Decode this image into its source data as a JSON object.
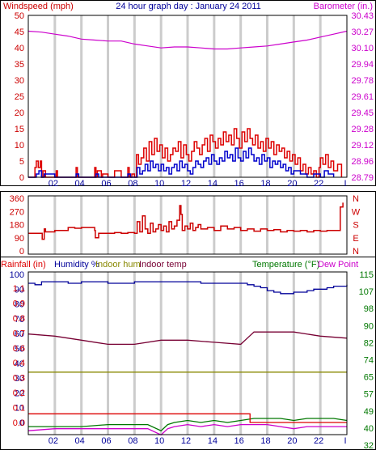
{
  "title": "24 hour graph day : January 24 2011",
  "colors": {
    "wind": "#dd0000",
    "gust": "#0000cc",
    "barometer": "#cc00cc",
    "direction": "#cc0000",
    "humidity": "#000099",
    "indoor_hum": "#888800",
    "indoor_temp": "#770033",
    "temperature": "#007700",
    "dew_point": "#cc00cc",
    "rain": "#dd0000",
    "grid": "#cccccc",
    "frame": "#000000"
  },
  "hour_ticks": [
    "02",
    "04",
    "06",
    "08",
    "10",
    "12",
    "14",
    "16",
    "18",
    "20",
    "22",
    "I"
  ],
  "chart_data": [
    {
      "type": "line",
      "name": "wind-barometer",
      "left_label": "Windspeed (mph)",
      "right_label": "Barometer (in.)",
      "x_range": [
        0,
        24
      ],
      "left_ticks": [
        "50",
        "45",
        "40",
        "35",
        "30",
        "25",
        "20",
        "15",
        "10",
        "5",
        "0"
      ],
      "left_range": [
        0,
        50
      ],
      "right_ticks": [
        "30.43",
        "30.27",
        "30.10",
        "29.94",
        "29.78",
        "29.61",
        "29.45",
        "29.28",
        "29.12",
        "28.96",
        "28.79"
      ],
      "right_range": [
        28.79,
        30.43
      ],
      "series": [
        {
          "key": "barometer",
          "axis": "right",
          "x": [
            0,
            1,
            2,
            3,
            4,
            5,
            6,
            7,
            8,
            9,
            10,
            11,
            12,
            13,
            14,
            15,
            16,
            17,
            18,
            19,
            20,
            21,
            22,
            23,
            24
          ],
          "values": [
            30.27,
            30.26,
            30.24,
            30.22,
            30.19,
            30.18,
            30.17,
            30.17,
            30.14,
            30.12,
            30.1,
            30.11,
            30.11,
            30.1,
            30.09,
            30.09,
            30.1,
            30.11,
            30.12,
            30.14,
            30.16,
            30.18,
            30.21,
            30.24,
            30.27
          ]
        },
        {
          "key": "wind",
          "axis": "left",
          "step": true,
          "x": [
            0,
            0.5,
            0.6,
            0.75,
            0.9,
            1.0,
            1.1,
            1.3,
            2,
            2.1,
            2.2,
            3,
            3.5,
            3.6,
            3.7,
            4.5,
            5.0,
            5.1,
            5.2,
            5.5,
            5.6,
            6.0,
            6.1,
            6.5,
            7.0,
            7.5,
            7.6,
            7.8,
            8.0,
            8.15,
            8.3,
            8.5,
            8.7,
            8.9,
            9.1,
            9.3,
            9.5,
            9.7,
            9.9,
            10.1,
            10.3,
            10.5,
            10.7,
            10.9,
            11.1,
            11.3,
            11.5,
            11.7,
            11.9,
            12.1,
            12.3,
            12.5,
            12.7,
            12.9,
            13.1,
            13.3,
            13.5,
            13.7,
            13.9,
            14.1,
            14.3,
            14.5,
            14.7,
            14.9,
            15.1,
            15.3,
            15.5,
            15.7,
            15.9,
            16.1,
            16.3,
            16.5,
            16.7,
            16.9,
            17.1,
            17.3,
            17.5,
            17.7,
            17.9,
            18.1,
            18.3,
            18.5,
            18.7,
            18.9,
            19.1,
            19.3,
            19.5,
            19.7,
            19.9,
            20.1,
            20.3,
            20.5,
            20.7,
            20.9,
            21.1,
            21.3,
            21.5,
            21.7,
            21.9,
            22.0,
            22.2,
            22.4,
            22.6,
            22.8,
            23.0,
            23.3,
            23.6
          ],
          "values": [
            0,
            3,
            5,
            3,
            5,
            0,
            2,
            0,
            0,
            2,
            0,
            0,
            0,
            3,
            0,
            0,
            3,
            0,
            2,
            0,
            1,
            0,
            0,
            2,
            0,
            3,
            0,
            1,
            0,
            7,
            4,
            6,
            9,
            5,
            11,
            7,
            12,
            8,
            10,
            6,
            9,
            5,
            7,
            9,
            8,
            11,
            6,
            10,
            7,
            5,
            8,
            11,
            9,
            7,
            10,
            12,
            8,
            13,
            11,
            9,
            12,
            10,
            14,
            11,
            13,
            10,
            15,
            12,
            9,
            14,
            11,
            15,
            12,
            10,
            13,
            9,
            11,
            8,
            12,
            9,
            11,
            7,
            10,
            8,
            9,
            6,
            8,
            5,
            7,
            4,
            6,
            2,
            4,
            1,
            3,
            1,
            2,
            0,
            3,
            6,
            4,
            7,
            3,
            5,
            2,
            4,
            0
          ]
        },
        {
          "key": "gust",
          "axis": "left",
          "step": true,
          "x": [
            0,
            0.6,
            0.8,
            1.0,
            1.2,
            2,
            3,
            3.6,
            3.8,
            4.5,
            5.1,
            5.3,
            6,
            7,
            7.5,
            7.7,
            8.0,
            8.2,
            8.4,
            8.6,
            8.8,
            9.0,
            9.2,
            9.4,
            9.6,
            9.8,
            10.0,
            10.2,
            10.4,
            10.6,
            10.8,
            11.0,
            11.2,
            11.4,
            11.6,
            11.8,
            12.0,
            12.2,
            12.4,
            12.6,
            12.8,
            13.0,
            13.2,
            13.4,
            13.6,
            13.8,
            14.0,
            14.2,
            14.4,
            14.6,
            14.8,
            15.0,
            15.2,
            15.4,
            15.6,
            15.8,
            16.0,
            16.2,
            16.4,
            16.6,
            16.8,
            17.0,
            17.2,
            17.4,
            17.6,
            17.8,
            18.0,
            18.2,
            18.4,
            18.6,
            18.8,
            19.0,
            19.2,
            19.4,
            19.6,
            19.8,
            20.0,
            20.5,
            21.0,
            21.5,
            22.0,
            22.3,
            22.6,
            23.0
          ],
          "values": [
            0,
            1,
            2,
            0,
            1,
            0,
            0,
            1,
            0,
            0,
            1,
            0,
            0,
            0,
            1,
            0,
            0,
            3,
            1,
            2,
            4,
            2,
            5,
            3,
            4,
            2,
            4,
            2,
            3,
            1,
            3,
            4,
            2,
            5,
            3,
            4,
            2,
            1,
            3,
            5,
            4,
            3,
            5,
            6,
            4,
            7,
            5,
            4,
            6,
            5,
            8,
            6,
            7,
            5,
            9,
            6,
            5,
            8,
            6,
            9,
            7,
            5,
            6,
            4,
            7,
            5,
            6,
            3,
            5,
            4,
            5,
            3,
            4,
            2,
            3,
            1,
            2,
            1,
            0,
            1,
            0,
            2,
            1,
            0
          ]
        }
      ]
    },
    {
      "type": "line",
      "name": "wind-direction",
      "x_range": [
        0,
        24
      ],
      "left_ticks": [
        "360",
        "270",
        "180",
        "90",
        "0"
      ],
      "left_range": [
        0,
        360
      ],
      "right_ticks": [
        "N",
        "W",
        "S",
        "E",
        "N"
      ],
      "series": [
        {
          "key": "direction",
          "axis": "left",
          "step": true,
          "x": [
            0,
            1.0,
            1.05,
            1.2,
            1.3,
            2.0,
            3.0,
            3.5,
            4.0,
            5.0,
            5.05,
            5.3,
            6.0,
            6.5,
            7.0,
            7.5,
            8.0,
            8.2,
            8.4,
            8.6,
            8.8,
            9.0,
            9.2,
            9.4,
            9.6,
            9.8,
            10.0,
            10.2,
            10.4,
            10.6,
            10.8,
            11.0,
            11.2,
            11.4,
            11.5,
            11.6,
            11.8,
            12.0,
            12.2,
            12.4,
            12.6,
            12.8,
            13.0,
            13.5,
            14.0,
            14.5,
            15.0,
            15.5,
            16.0,
            16.5,
            17.0,
            17.5,
            18.0,
            18.5,
            19.0,
            19.5,
            20.0,
            20.5,
            21.0,
            21.5,
            22.0,
            22.5,
            23.0,
            23.5,
            23.7
          ],
          "values": [
            120,
            120,
            80,
            150,
            130,
            140,
            160,
            155,
            160,
            140,
            90,
            120,
            120,
            125,
            120,
            125,
            120,
            200,
            130,
            240,
            150,
            120,
            190,
            130,
            150,
            180,
            140,
            170,
            130,
            200,
            150,
            170,
            210,
            310,
            250,
            140,
            170,
            150,
            190,
            140,
            160,
            180,
            150,
            160,
            140,
            170,
            150,
            160,
            140,
            150,
            135,
            150,
            140,
            145,
            130,
            140,
            135,
            140,
            130,
            140,
            135,
            140,
            140,
            300,
            330
          ]
        }
      ]
    },
    {
      "type": "line",
      "name": "temperature-humidity-rain",
      "x_range": [
        0,
        24
      ],
      "labels": {
        "rainfall": "Rainfall (in)",
        "humidity": "Humidity %",
        "indoor_hum": "Indoor hum",
        "indoor_temp": "Indoor temp",
        "temperature": "Temperature (°F)",
        "dew_point": "Dew Point"
      },
      "humidity_ticks": [
        "100",
        "90",
        "80",
        "70",
        "60",
        "50",
        "40",
        "30",
        "20",
        "10",
        "0"
      ],
      "humidity_range": [
        0,
        100
      ],
      "rain_ticks": [
        "1.1",
        "0.9",
        "0.8",
        "0.7",
        "0.6",
        "0.4",
        "0.3",
        "0.2",
        "0.1",
        "0.0"
      ],
      "rain_range": [
        0,
        1.2
      ],
      "temp_ticks": [
        "115",
        "107",
        "98",
        "90",
        "82",
        "74",
        "65",
        "57",
        "49",
        "40",
        "32"
      ],
      "temp_range": [
        32,
        115
      ],
      "series": [
        {
          "key": "humidity",
          "axis": "humidity",
          "step": true,
          "x": [
            0,
            0.5,
            1,
            2,
            3,
            4,
            5,
            6,
            7,
            8,
            9,
            10,
            11,
            12,
            13,
            14,
            15,
            16,
            16.5,
            17,
            17.5,
            18,
            18.5,
            19,
            19.5,
            20,
            20.5,
            21,
            21.5,
            22,
            22.5,
            23,
            24
          ],
          "values": [
            94,
            93,
            95,
            95,
            94,
            95,
            95,
            94,
            94,
            95,
            95,
            95,
            95,
            95,
            94,
            94,
            94,
            94,
            93,
            92,
            91,
            89,
            88,
            87,
            87,
            88,
            88,
            89,
            90,
            90,
            91,
            92,
            93
          ]
        },
        {
          "key": "indoor_temp",
          "axis": "temp",
          "x": [
            0,
            2,
            4,
            6,
            8,
            10,
            12,
            14,
            16,
            16.5,
            17,
            18,
            20,
            22,
            24
          ],
          "values": [
            86,
            85,
            83,
            81,
            81,
            83,
            83,
            82,
            81,
            84,
            87,
            87,
            87,
            85,
            84
          ],
          "secondary_axis_note": "drawn against temperature scale"
        },
        {
          "key": "indoor_hum",
          "axis": "humidity",
          "x": [
            0,
            4,
            8,
            12,
            16,
            20,
            24
          ],
          "values": [
            34,
            34,
            34,
            34,
            34,
            34,
            34
          ]
        },
        {
          "key": "temperature",
          "axis": "temp",
          "x": [
            0,
            2,
            4,
            6,
            8,
            9,
            10,
            10.5,
            11,
            12,
            13,
            14,
            15,
            16,
            17,
            18,
            19,
            20,
            21,
            22,
            23,
            24
          ],
          "values": [
            41,
            41,
            41,
            42,
            42,
            42,
            39,
            42,
            43,
            44,
            43,
            44,
            43,
            44,
            45,
            45,
            45,
            44,
            45,
            45,
            45,
            44
          ],
          "secondary_axis_note": "drawn against temperature scale"
        },
        {
          "key": "dew_point",
          "axis": "temp",
          "x": [
            0,
            2,
            4,
            6,
            8,
            9,
            10,
            10.5,
            11,
            12,
            13,
            14,
            15,
            16,
            17,
            18,
            19,
            20,
            21,
            22,
            23,
            24
          ],
          "values": [
            39,
            40,
            40,
            40,
            40,
            40,
            37,
            40,
            41,
            42,
            41,
            42,
            41,
            42,
            42,
            42,
            41,
            40,
            41,
            41,
            41,
            41
          ]
        },
        {
          "key": "rain",
          "axis": "rain",
          "step": true,
          "x": [
            0,
            16.6,
            16.7,
            24
          ],
          "values": [
            0.07,
            0.07,
            0.0,
            0.0
          ]
        }
      ]
    }
  ]
}
